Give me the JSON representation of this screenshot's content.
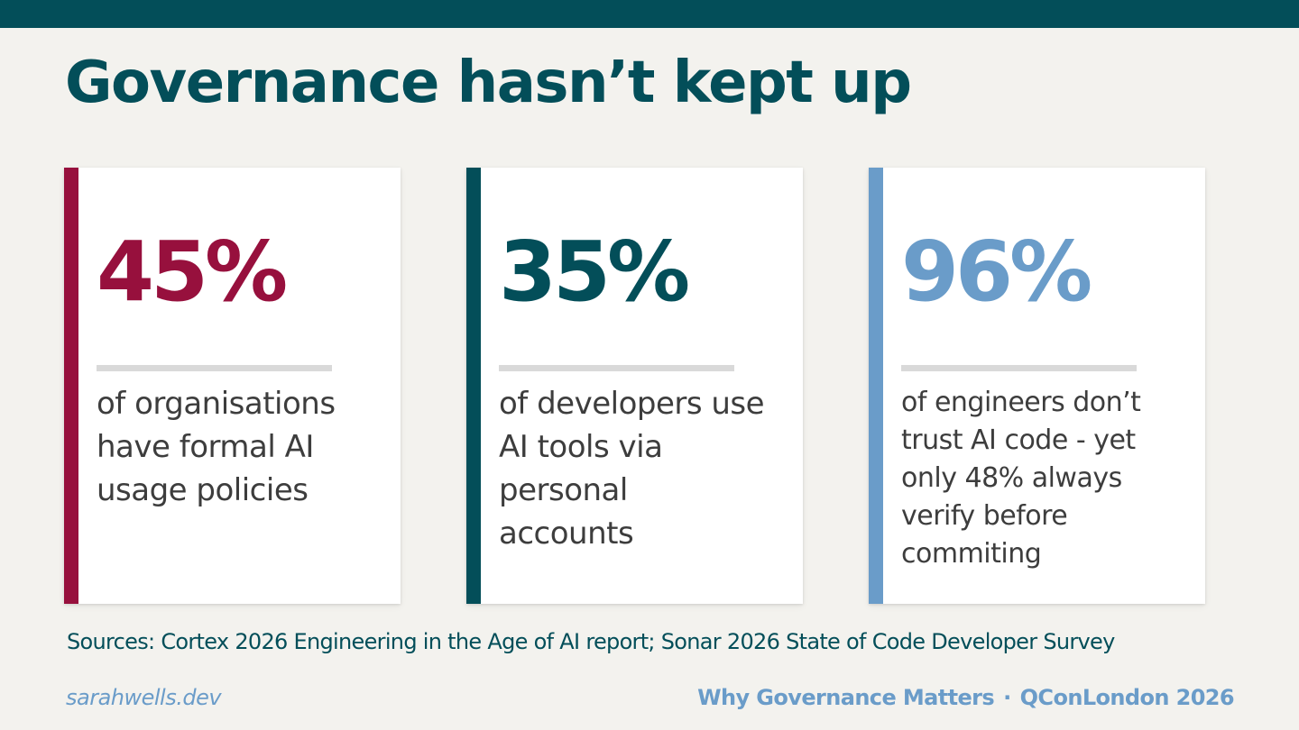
{
  "title": "Governance hasn’t kept up",
  "colors": {
    "top_bar": "#034e59",
    "background": "#f3f2ee",
    "title": "#034e59",
    "card_1_accent": "#97103d",
    "card_2_accent": "#034e59",
    "card_3_accent": "#6a9cc9",
    "body_text": "#3d3d3d",
    "footer": "#6a9cc9"
  },
  "cards": [
    {
      "stat": "45%",
      "description": "of organisations have formal AI usage policies"
    },
    {
      "stat": "35%",
      "description": "of developers use AI tools via personal accounts"
    },
    {
      "stat": "96%",
      "description": "of engineers don’t trust AI code - yet only 48% always verify before commiting"
    }
  ],
  "sources": "Sources: Cortex 2026 Engineering in the Age of AI report; Sonar 2026 State of Code Developer Survey",
  "footer": {
    "website": "sarahwells.dev",
    "talk_title": "Why Governance Matters",
    "separator": "·",
    "event": "QConLondon 2026"
  }
}
